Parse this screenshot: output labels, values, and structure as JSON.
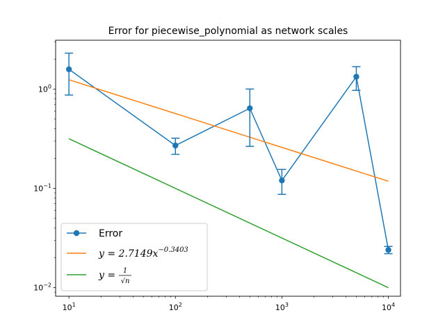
{
  "chart_data": {
    "type": "line",
    "title": "Error for piecewise_polynomial as network scales",
    "xlabel": "",
    "ylabel": "",
    "xscale": "log",
    "yscale": "log",
    "xlim": [
      7.5,
      13000
    ],
    "ylim": [
      0.0082,
      3.1
    ],
    "x_ticks": [
      {
        "base": "10",
        "exp": "1"
      },
      {
        "base": "10",
        "exp": "2"
      },
      {
        "base": "10",
        "exp": "3"
      },
      {
        "base": "10",
        "exp": "4"
      }
    ],
    "y_ticks": [
      {
        "base": "10",
        "exp": "0"
      },
      {
        "base": "10",
        "exp": "−1"
      },
      {
        "base": "10",
        "exp": "−2"
      }
    ],
    "x_tick_values": [
      10,
      100,
      1000,
      10000
    ],
    "y_tick_values": [
      1,
      0.1,
      0.01
    ],
    "grid": false,
    "legend_position": "lower-left",
    "series": [
      {
        "name": "Error",
        "color": "#1f77b4",
        "marker": "circle",
        "x": [
          10,
          100,
          500,
          1000,
          5000,
          10000
        ],
        "y": [
          1.58,
          0.27,
          0.64,
          0.12,
          1.33,
          0.024
        ],
        "y_err_low": [
          0.87,
          0.22,
          0.265,
          0.087,
          0.97,
          0.022
        ],
        "y_err_high": [
          2.3,
          0.32,
          1.0,
          0.155,
          1.68,
          0.026
        ]
      },
      {
        "name": "y = 2.7149x^{-0.3403}",
        "legend_prefix": "y = 2.7149x",
        "legend_exponent": "−0.3403",
        "color": "#ff7f0e",
        "x": [
          10,
          10000
        ],
        "y": [
          1.24,
          0.118
        ]
      },
      {
        "name": "y = 1/√n",
        "legend_prefix": "y =",
        "legend_numerator": "1",
        "legend_denominator": "√n",
        "color": "#2ca02c",
        "x": [
          10,
          10000
        ],
        "y": [
          0.316,
          0.01
        ]
      }
    ]
  }
}
